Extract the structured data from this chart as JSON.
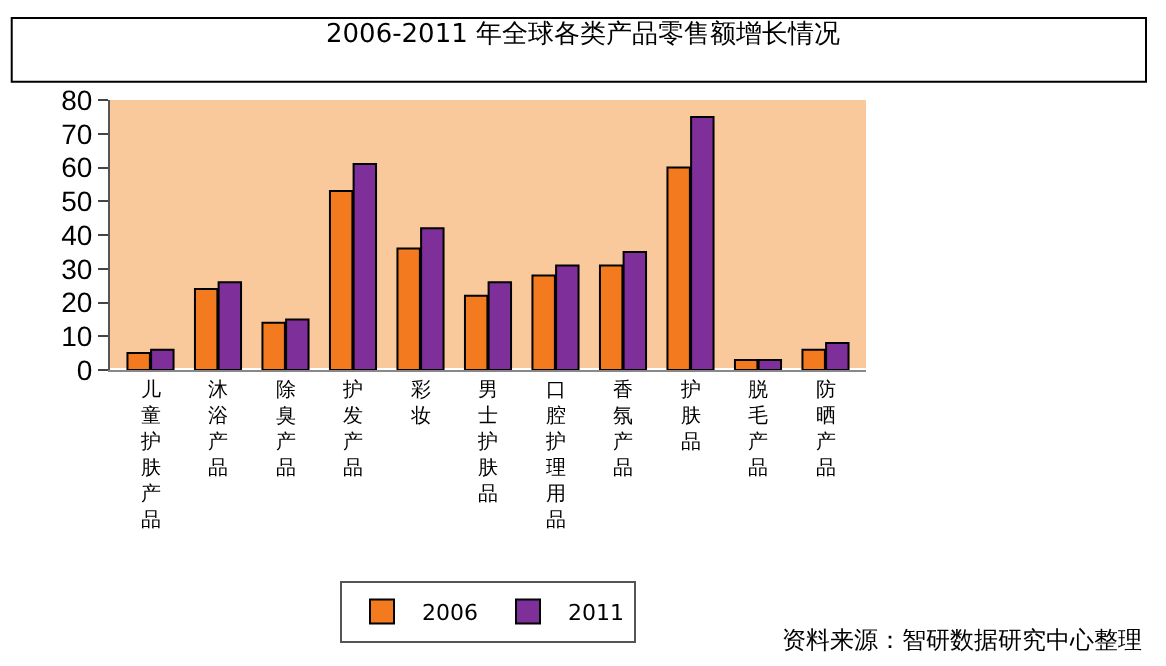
{
  "chart_data": {
    "type": "bar",
    "title": "2006-2011 年全球各类产品零售额增长情况",
    "categories": [
      "儿童护肤产品",
      "沐浴产品",
      "除臭产品",
      "护发产品",
      "彩妆",
      "男士护肤品",
      "口腔护理用品",
      "香氛产品",
      "护肤品",
      "脱毛产品",
      "防晒产品"
    ],
    "series": [
      {
        "name": "2006",
        "color": "#f47a20",
        "values": [
          5,
          24,
          14,
          53,
          36,
          22,
          28,
          31,
          60,
          3,
          6
        ]
      },
      {
        "name": "2011",
        "color": "#7f2f9a",
        "values": [
          6,
          26,
          15,
          61,
          42,
          26,
          31,
          35,
          75,
          3,
          8
        ]
      }
    ],
    "ylim": [
      0,
      80
    ],
    "yticks": [
      0,
      10,
      20,
      30,
      40,
      50,
      60,
      70,
      80
    ],
    "grid": false,
    "legend": "bottom",
    "annotations": [
      "资料来源：智研数据研究中心整理"
    ]
  }
}
